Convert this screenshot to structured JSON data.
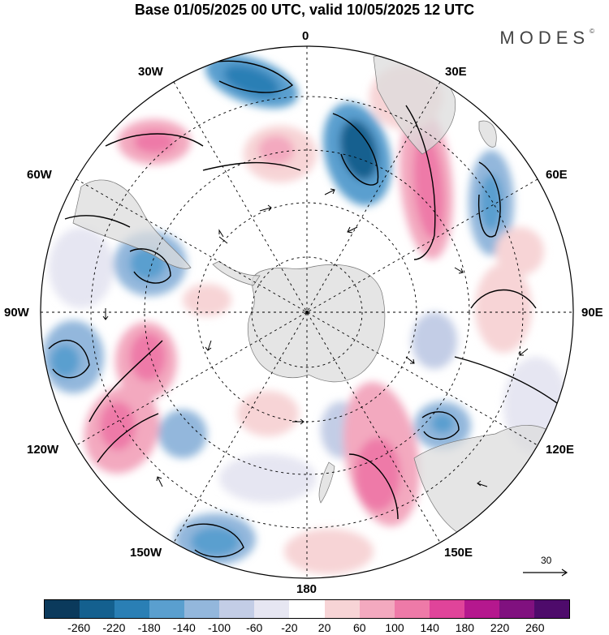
{
  "title": "Base 01/05/2025 00 UTC, valid 10/05/2025 12 UTC",
  "logo": "MODES",
  "logo_mark": "©",
  "longitude_labels": {
    "lon0": "0",
    "lon30e": "30E",
    "lon60e": "60E",
    "lon90e": "90E",
    "lon120e": "120E",
    "lon150e": "150E",
    "lon180": "180",
    "lon150w": "150W",
    "lon120w": "120W",
    "lon90w": "90W",
    "lon60w": "60W",
    "lon30w": "30W"
  },
  "reference_vector": "30",
  "colorbar": {
    "ticks": [
      "-260",
      "-220",
      "-180",
      "-140",
      "-100",
      "-60",
      "-20",
      "20",
      "60",
      "100",
      "140",
      "180",
      "220",
      "260"
    ],
    "colors": [
      "#0b3a5c",
      "#14608f",
      "#2a7fb5",
      "#5a9fcf",
      "#93b7dc",
      "#c3cde6",
      "#e6e6f2",
      "#ffffff",
      "#f7d4d6",
      "#f3a9bf",
      "#ee7aa8",
      "#e0449a",
      "#b5188e",
      "#80117f",
      "#4e0b6b"
    ]
  }
}
